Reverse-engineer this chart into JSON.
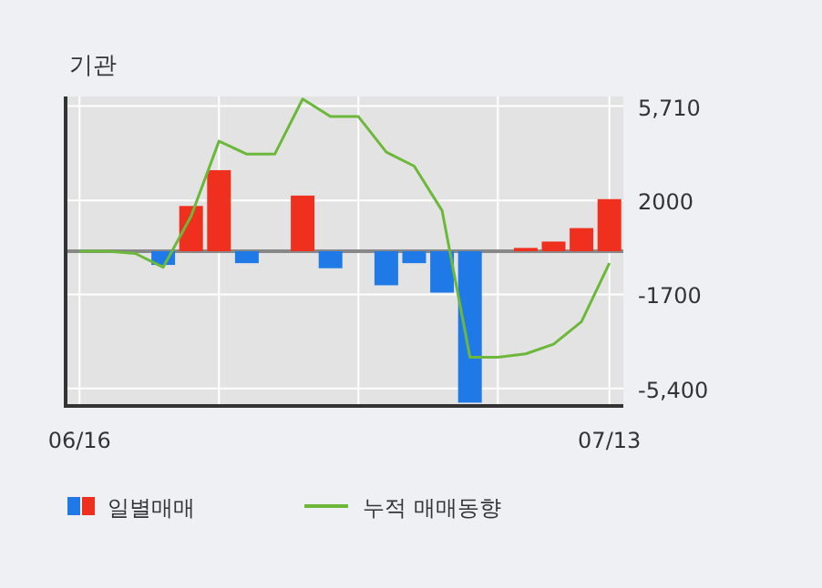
{
  "chart_data": {
    "type": "bar",
    "title": "기관",
    "categories": [
      "06/16",
      null,
      null,
      null,
      null,
      null,
      null,
      null,
      null,
      null,
      null,
      null,
      null,
      null,
      null,
      null,
      null,
      null,
      null,
      "07/13"
    ],
    "series": [
      {
        "name": "일별매매",
        "values": [
          0,
          0,
          0,
          -540,
          1780,
          3190,
          -470,
          0,
          2190,
          -670,
          0,
          -1340,
          -470,
          -1630,
          -5960,
          0,
          130,
          380,
          910,
          2050
        ],
        "colors": [
          "#f0301e",
          "#f0301e",
          "#f0301e",
          "#1f7ae8",
          "#f0301e",
          "#f0301e",
          "#1f7ae8",
          "#f0301e",
          "#f0301e",
          "#1f7ae8",
          "#f0301e",
          "#1f7ae8",
          "#1f7ae8",
          "#1f7ae8",
          "#1f7ae8",
          "#f0301e",
          "#f0301e",
          "#f0301e",
          "#f0301e",
          "#f0301e"
        ]
      },
      {
        "name": "누적 매매동향",
        "type": "line",
        "color": "#6cb83a",
        "values": [
          0,
          0,
          -90,
          -630,
          1380,
          4330,
          3820,
          3820,
          5990,
          5300,
          5300,
          3900,
          3350,
          1600,
          -4170,
          -4170,
          -4040,
          -3660,
          -2770,
          -470
        ]
      }
    ],
    "ylim": [
      -6090,
      6090
    ],
    "yticks": [
      {
        "value": 5710,
        "label": "5,710"
      },
      2000,
      -1700,
      {
        "value": -5400,
        "label": "-5,400"
      }
    ],
    "grid": true,
    "legend": "bottom"
  }
}
